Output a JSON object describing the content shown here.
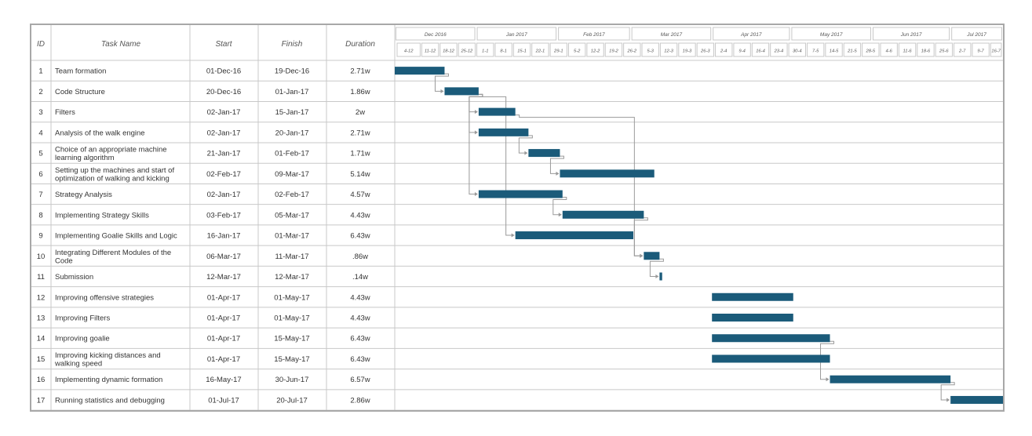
{
  "chart_data": {
    "type": "gantt",
    "columns": {
      "id": "ID",
      "task": "Task Name",
      "start": "Start",
      "finish": "Finish",
      "duration": "Duration"
    },
    "timeline": {
      "months": [
        "Dec 2016",
        "Jan 2017",
        "Feb 2017",
        "Mar 2017",
        "Apr 2017",
        "May 2017",
        "Jun 2017",
        "Jul 2017"
      ],
      "weeks": [
        "4-12",
        "11-12",
        "18-12",
        "25-12",
        "1-1",
        "8-1",
        "15-1",
        "22-1",
        "29-1",
        "5-2",
        "12-2",
        "19-2",
        "26-2",
        "5-3",
        "12-3",
        "19-3",
        "26-3",
        "2-4",
        "9-4",
        "16-4",
        "23-4",
        "30-4",
        "7-5",
        "14-5",
        "21-5",
        "28-5",
        "4-6",
        "11-6",
        "18-6",
        "25-6",
        "2-7",
        "9-7",
        "16-7"
      ],
      "axis_start": "2016-12-01",
      "axis_end": "2017-07-21"
    },
    "tasks": [
      {
        "id": "1",
        "name": "Team formation",
        "start": "01-Dec-16",
        "finish": "19-Dec-16",
        "duration": "2.71w",
        "start_date": "2016-12-01",
        "finish_date": "2016-12-19"
      },
      {
        "id": "2",
        "name": "Code Structure",
        "start": "20-Dec-16",
        "finish": "01-Jan-17",
        "duration": "1.86w",
        "start_date": "2016-12-20",
        "finish_date": "2017-01-01"
      },
      {
        "id": "3",
        "name": "Filters",
        "start": "02-Jan-17",
        "finish": "15-Jan-17",
        "duration": "2w",
        "start_date": "2017-01-02",
        "finish_date": "2017-01-15"
      },
      {
        "id": "4",
        "name": "Analysis of the walk engine",
        "start": "02-Jan-17",
        "finish": "20-Jan-17",
        "duration": "2.71w",
        "start_date": "2017-01-02",
        "finish_date": "2017-01-20"
      },
      {
        "id": "5",
        "name": "Choice of an appropriate machine learning algorithm",
        "start": "21-Jan-17",
        "finish": "01-Feb-17",
        "duration": "1.71w",
        "start_date": "2017-01-21",
        "finish_date": "2017-02-01"
      },
      {
        "id": "6",
        "name": "Setting up the machines and start of optimization of walking and kicking",
        "start": "02-Feb-17",
        "finish": "09-Mar-17",
        "duration": "5.14w",
        "start_date": "2017-02-02",
        "finish_date": "2017-03-09"
      },
      {
        "id": "7",
        "name": "Strategy Analysis",
        "start": "02-Jan-17",
        "finish": "02-Feb-17",
        "duration": "4.57w",
        "start_date": "2017-01-02",
        "finish_date": "2017-02-02"
      },
      {
        "id": "8",
        "name": "Implementing Strategy Skills",
        "start": "03-Feb-17",
        "finish": "05-Mar-17",
        "duration": "4.43w",
        "start_date": "2017-02-03",
        "finish_date": "2017-03-05"
      },
      {
        "id": "9",
        "name": "Implementing Goalie Skills and Logic",
        "start": "16-Jan-17",
        "finish": "01-Mar-17",
        "duration": "6.43w",
        "start_date": "2017-01-16",
        "finish_date": "2017-03-01"
      },
      {
        "id": "10",
        "name": "Integrating Different Modules of the Code",
        "start": "06-Mar-17",
        "finish": "11-Mar-17",
        "duration": ".86w",
        "start_date": "2017-03-06",
        "finish_date": "2017-03-11"
      },
      {
        "id": "11",
        "name": "Submission",
        "start": "12-Mar-17",
        "finish": "12-Mar-17",
        "duration": ".14w",
        "start_date": "2017-03-12",
        "finish_date": "2017-03-12"
      },
      {
        "id": "12",
        "name": "Improving offensive strategies",
        "start": "01-Apr-17",
        "finish": "01-May-17",
        "duration": "4.43w",
        "start_date": "2017-04-01",
        "finish_date": "2017-05-01"
      },
      {
        "id": "13",
        "name": "Improving Filters",
        "start": "01-Apr-17",
        "finish": "01-May-17",
        "duration": "4.43w",
        "start_date": "2017-04-01",
        "finish_date": "2017-05-01"
      },
      {
        "id": "14",
        "name": "Improving goalie",
        "start": "01-Apr-17",
        "finish": "15-May-17",
        "duration": "6.43w",
        "start_date": "2017-04-01",
        "finish_date": "2017-05-15"
      },
      {
        "id": "15",
        "name": "Improving kicking distances and walking speed",
        "start": "01-Apr-17",
        "finish": "15-May-17",
        "duration": "6.43w",
        "start_date": "2017-04-01",
        "finish_date": "2017-05-15"
      },
      {
        "id": "16",
        "name": "Implementing dynamic formation",
        "start": "16-May-17",
        "finish": "30-Jun-17",
        "duration": "6.57w",
        "start_date": "2017-05-16",
        "finish_date": "2017-06-30"
      },
      {
        "id": "17",
        "name": "Running statistics and debugging",
        "start": "01-Jul-17",
        "finish": "20-Jul-17",
        "duration": "2.86w",
        "start_date": "2017-07-01",
        "finish_date": "2017-07-20"
      }
    ],
    "dependencies": [
      [
        "1",
        "2"
      ],
      [
        "2",
        "3"
      ],
      [
        "2",
        "4"
      ],
      [
        "2",
        "7"
      ],
      [
        "2",
        "9"
      ],
      [
        "4",
        "5"
      ],
      [
        "5",
        "6"
      ],
      [
        "7",
        "8"
      ],
      [
        "3",
        "10"
      ],
      [
        "8",
        "10"
      ],
      [
        "10",
        "11"
      ],
      [
        "14",
        "16"
      ],
      [
        "16",
        "17"
      ]
    ],
    "colors": {
      "bar": "#1b5b7a",
      "grid": "#c8c8c8",
      "link": "#9a9a9a"
    }
  }
}
